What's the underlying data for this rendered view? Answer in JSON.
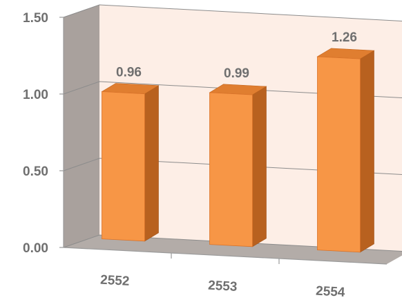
{
  "chart_data": {
    "type": "bar",
    "categories": [
      "2552",
      "2553",
      "2554"
    ],
    "values": [
      0.96,
      0.99,
      1.26
    ],
    "data_labels": [
      "0.96",
      "0.99",
      "1.26"
    ],
    "y_ticks": [
      {
        "value": 0.0,
        "label": "0.00"
      },
      {
        "value": 0.5,
        "label": "0.50"
      },
      {
        "value": 1.0,
        "label": "1.00"
      },
      {
        "value": 1.5,
        "label": "1.50"
      }
    ],
    "ylim": [
      0,
      1.5
    ],
    "grid": true,
    "legend": "none",
    "style": "3d-column",
    "colors": {
      "bar_front": "#f79646",
      "bar_side": "#b8611f",
      "bar_top": "#e07e30",
      "back_wall": "#fdeee6",
      "side_wall": "#a9a19d",
      "floor": "#b3aca8",
      "gridline": "#8c8c8c",
      "text": "#6f6f6f"
    }
  }
}
